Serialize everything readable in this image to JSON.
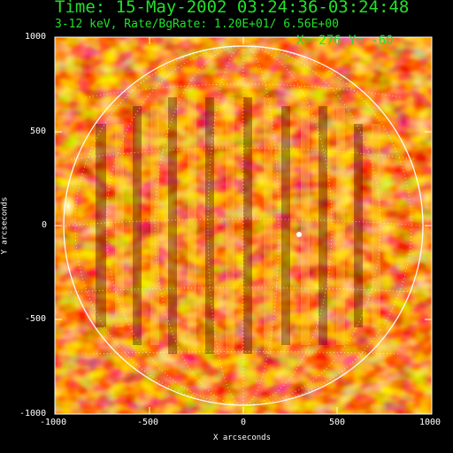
{
  "header": {
    "title": "Time: 15-May-2002 03:24:36-03:24:48",
    "subtitle": "3-12 keV, Rate/BgRate:  1.20E+01/  6.56E+00"
  },
  "cursor": {
    "readout": "X=  276 Y=  -60"
  },
  "axes": {
    "xlabel": "X arcseconds",
    "ylabel": "Y arcseconds",
    "x_ticks": [
      "-1000",
      "-500",
      "0",
      "500",
      "1000"
    ],
    "y_ticks": [
      "1000",
      "500",
      "0",
      "-500",
      "-1000"
    ],
    "xlim": [
      -1000,
      1000
    ],
    "ylim": [
      -1000,
      1000
    ]
  },
  "image": {
    "description_colors": {
      "dark": "#3a0000",
      "mid": "#c81a00",
      "bright": "#ffe87a",
      "grid": "#ffffff",
      "text": "#22e02a"
    }
  }
}
